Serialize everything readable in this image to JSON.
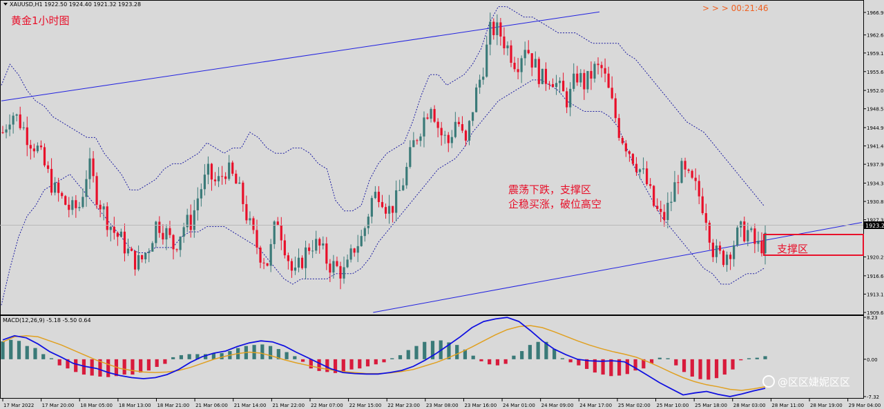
{
  "header": {
    "symbol_info": "XAUUSD,H1  1922.50 1924.40 1921.32 1923.28",
    "chart_title": "黄金1小时图",
    "timer": "> > >  00:21:46"
  },
  "annotations": {
    "line1": "震荡下跌，支撑区",
    "line2": "企稳买涨，破位高空",
    "support_label": "支撑区"
  },
  "indicator": {
    "label": "MACD(12,26,9) -5.18 -5.50 0.64"
  },
  "current_price": "1923.28",
  "watermark": "@区区婕妮区区",
  "colors": {
    "bull": "#3a7a78",
    "bear": "#e8102a",
    "band": "#1a1aa0",
    "channel": "#2020e0",
    "signal": "#e0a020",
    "macd": "#1010e0",
    "macd_bear": "#d81b3c"
  },
  "chart_data": [
    {
      "type": "candlestick",
      "title": "黄金1小时图",
      "symbol": "XAUUSD,H1",
      "ylim": [
        1909.6,
        1966.9
      ],
      "price_ticks": [
        "1966.90",
        "1962.60",
        "1959.15",
        "1955.60",
        "1952.00",
        "1948.50",
        "1944.90",
        "1941.40",
        "1937.90",
        "1934.30",
        "1930.80",
        "1927.30",
        "1923.28",
        "1920.20",
        "1916.60",
        "1913.10",
        "1909.60"
      ],
      "x_labels": [
        "17 Mar 2022",
        "17 Mar 20:00",
        "18 Mar 05:00",
        "18 Mar 13:00",
        "18 Mar 21:00",
        "21 Mar 06:00",
        "21 Mar 14:00",
        "21 Mar 22:00",
        "22 Mar 07:00",
        "22 Mar 15:00",
        "22 Mar 23:00",
        "23 Mar 08:00",
        "23 Mar 16:00",
        "24 Mar 01:00",
        "24 Mar 09:00",
        "24 Mar 17:00",
        "25 Mar 02:00",
        "25 Mar 10:00",
        "25 Mar 18:00",
        "28 Mar 03:00",
        "28 Mar 11:00",
        "28 Mar 19:00",
        "29 Mar 04:00"
      ],
      "close_path": [
        1944,
        1948,
        1946,
        1943,
        1941,
        1937,
        1933,
        1931,
        1929,
        1930,
        1938,
        1932,
        1928,
        1925,
        1923,
        1920,
        1919,
        1922,
        1927,
        1925,
        1922,
        1926,
        1927,
        1933,
        1936,
        1934,
        1937,
        1935,
        1931,
        1925,
        1921,
        1919,
        1928,
        1922,
        1916,
        1920,
        1923,
        1922,
        1919,
        1918,
        1917,
        1922,
        1924,
        1931,
        1933,
        1929,
        1931,
        1936,
        1942,
        1946,
        1950,
        1944,
        1942,
        1947,
        1941,
        1950,
        1956,
        1964,
        1963,
        1960,
        1957,
        1961,
        1957,
        1954,
        1955,
        1952,
        1950,
        1955,
        1953,
        1956,
        1956,
        1950,
        1944,
        1941,
        1938,
        1935,
        1930,
        1927,
        1931,
        1937,
        1935,
        1933,
        1929,
        1921,
        1920,
        1922,
        1925,
        1925,
        1922,
        1923
      ],
      "bollinger": {
        "upper": [
          1953,
          1957,
          1955,
          1952,
          1950,
          1949,
          1947,
          1946,
          1945,
          1944,
          1943,
          1943,
          1940,
          1938,
          1936,
          1933,
          1933,
          1934,
          1935,
          1937,
          1938,
          1938,
          1939,
          1940,
          1942,
          1941,
          1940,
          1941,
          1941,
          1944,
          1943,
          1941,
          1940,
          1940,
          1941,
          1941,
          1940,
          1938,
          1937,
          1931,
          1929,
          1929,
          1930,
          1935,
          1938,
          1940,
          1941,
          1942,
          1946,
          1951,
          1955,
          1955,
          1953,
          1954,
          1955,
          1957,
          1960,
          1965,
          1968,
          1968,
          1967,
          1966,
          1966,
          1965,
          1964,
          1963,
          1963,
          1963,
          1962,
          1961,
          1961,
          1961,
          1961,
          1959,
          1958,
          1956,
          1954,
          1952,
          1950,
          1948,
          1946,
          1945,
          1944,
          1942,
          1940,
          1938,
          1936,
          1934,
          1932,
          1930
        ],
        "lower": [
          1911,
          1918,
          1924,
          1928,
          1930,
          1933,
          1934,
          1935,
          1936,
          1934,
          1932,
          1930,
          1928,
          1926,
          1924,
          1922,
          1921,
          1921,
          1922,
          1922,
          1922,
          1924,
          1925,
          1925,
          1926,
          1926,
          1926,
          1925,
          1924,
          1923,
          1922,
          1920,
          1918,
          1916,
          1915,
          1916,
          1916,
          1916,
          1916,
          1917,
          1917,
          1917,
          1918,
          1920,
          1923,
          1925,
          1927,
          1929,
          1931,
          1933,
          1935,
          1937,
          1938,
          1939,
          1941,
          1944,
          1946,
          1948,
          1950,
          1951,
          1952,
          1953,
          1954,
          1954,
          1953,
          1952,
          1950,
          1949,
          1948,
          1948,
          1948,
          1947,
          1945,
          1941,
          1937,
          1934,
          1931,
          1928,
          1926,
          1924,
          1922,
          1920,
          1918,
          1917,
          1915,
          1915,
          1916,
          1917,
          1917,
          1918
        ],
        "middle_hidden": true
      },
      "trend_channel": {
        "upper": [
          [
            0,
            1950.0
          ],
          [
            1.0,
            1967.0
          ]
        ],
        "lower": [
          [
            0.42,
            1909.6
          ],
          [
            1.0,
            1926.0
          ]
        ]
      },
      "annotation_text": [
        "震荡下跌，支撑区",
        "企稳买涨，破位高空"
      ],
      "support_zone_label": "支撑区"
    },
    {
      "type": "bar",
      "title": "MACD(12,26,9) -5.18 -5.50 0.64",
      "ylim": [
        -7.32,
        8.23
      ],
      "y_ticks": [
        "8.23",
        "0.00",
        "-7.32"
      ],
      "histogram": [
        3.5,
        3.8,
        3.6,
        2.6,
        2.2,
        1.0,
        0.2,
        -1.2,
        -1.8,
        -2.5,
        -3.0,
        -3.2,
        -3.4,
        -3.5,
        -3.3,
        -3.0,
        -3.0,
        -2.6,
        -2.2,
        -1.5,
        -0.9,
        0.4,
        0.8,
        1.0,
        1.0,
        1.0,
        1.2,
        1.2,
        1.6,
        2.2,
        2.6,
        2.8,
        2.9,
        2.6,
        2.0,
        1.4,
        0.6,
        -0.5,
        -1.8,
        -2.3,
        -2.5,
        -2.7,
        -2.4,
        -2.0,
        -1.8,
        -1.4,
        -1.0,
        -0.6,
        0.2,
        0.8,
        1.8,
        2.6,
        3.4,
        3.6,
        3.7,
        3.3,
        2.8,
        1.9,
        0.7,
        -0.4,
        -1.0,
        -1.2,
        -0.9,
        0.7,
        1.6,
        2.8,
        3.4,
        3.4,
        2.0,
        0.2,
        -0.6,
        -1.2,
        -1.9,
        -2.6,
        -3.0,
        -3.3,
        -3.2,
        -2.9,
        -2.2,
        -1.8,
        -0.8,
        0.3,
        0.2,
        -1.2,
        -2.5,
        -3.4,
        -3.9,
        -4.0,
        -3.7,
        -3.0,
        -2.0,
        -0.2,
        0.2,
        0.3,
        0.6
      ],
      "macd_line": [
        3.8,
        4.6,
        4.2,
        3.0,
        1.5,
        0.4,
        -0.8,
        -1.4,
        -1.8,
        -2.6,
        -3.2,
        -3.6,
        -3.8,
        -3.6,
        -3.0,
        -2.0,
        -0.6,
        0.5,
        1.2,
        1.6,
        2.5,
        3.2,
        3.6,
        3.4,
        2.6,
        1.4,
        0.3,
        -0.8,
        -1.9,
        -2.6,
        -2.8,
        -2.9,
        -2.9,
        -2.6,
        -2.2,
        -1.4,
        -0.2,
        1.2,
        2.8,
        4.4,
        6.2,
        7.4,
        7.9,
        8.2,
        7.4,
        5.6,
        3.6,
        2.0,
        0.9,
        0.0,
        -0.3,
        -0.4,
        -0.3,
        -0.5,
        -1.8,
        -3.2,
        -4.6,
        -5.8,
        -7.0,
        -6.6,
        -6.3,
        -6.9,
        -7.3,
        -6.8,
        -6.2,
        -5.7
      ],
      "signal_line": [
        3.4,
        4.4,
        4.6,
        4.4,
        3.6,
        2.8,
        1.8,
        0.8,
        -0.2,
        -1.0,
        -1.8,
        -2.2,
        -2.5,
        -2.6,
        -2.5,
        -2.2,
        -1.6,
        -0.8,
        0.0,
        0.6,
        1.1,
        1.4,
        1.2,
        0.6,
        -0.1,
        -0.7,
        -1.2,
        -1.7,
        -2.1,
        -2.4,
        -2.6,
        -2.8,
        -2.8,
        -2.7,
        -2.4,
        -2.0,
        -1.3,
        -0.6,
        0.3,
        1.3,
        2.4,
        3.6,
        4.8,
        5.8,
        6.4,
        6.6,
        6.2,
        5.4,
        4.5,
        3.6,
        2.8,
        2.1,
        1.5,
        1.0,
        0.4,
        -0.5,
        -1.5,
        -2.6,
        -3.6,
        -4.4,
        -5.0,
        -5.4,
        -5.9,
        -6.1,
        -5.8,
        -5.4
      ]
    }
  ]
}
